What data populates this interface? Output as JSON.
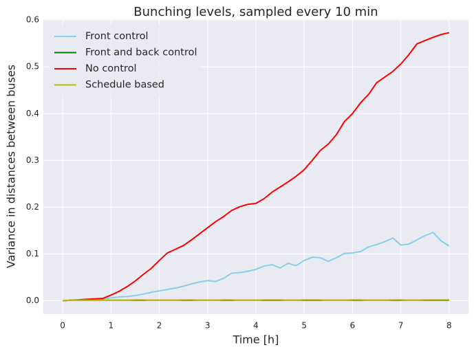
{
  "chart_data": {
    "type": "line",
    "title": "Bunching levels, sampled every 10 min",
    "x_label": "Time [h]",
    "y_label": "Variance in distances between buses",
    "x": [
      0,
      0.167,
      0.333,
      0.5,
      0.667,
      0.833,
      1,
      1.167,
      1.333,
      1.5,
      1.667,
      1.833,
      2,
      2.167,
      2.333,
      2.5,
      2.667,
      2.833,
      3,
      3.167,
      3.333,
      3.5,
      3.667,
      3.833,
      4,
      4.167,
      4.333,
      4.5,
      4.667,
      4.833,
      5,
      5.167,
      5.333,
      5.5,
      5.667,
      5.833,
      6,
      6.167,
      6.333,
      6.5,
      6.667,
      6.833,
      7,
      7.167,
      7.333,
      7.5,
      7.667,
      7.833,
      8
    ],
    "series": [
      {
        "name": "Front control",
        "color": "#87ceeb",
        "values": [
          0,
          0.001,
          0.001,
          0.002,
          0.003,
          0.004,
          0.006,
          0.008,
          0.009,
          0.011,
          0.014,
          0.018,
          0.021,
          0.024,
          0.027,
          0.031,
          0.036,
          0.04,
          0.043,
          0.041,
          0.048,
          0.059,
          0.06,
          0.063,
          0.067,
          0.074,
          0.077,
          0.07,
          0.08,
          0.075,
          0.086,
          0.093,
          0.092,
          0.084,
          0.092,
          0.101,
          0.102,
          0.105,
          0.115,
          0.12,
          0.126,
          0.134,
          0.119,
          0.121,
          0.13,
          0.139,
          0.146,
          0.128,
          0.117
        ]
      },
      {
        "name": "Front and back control",
        "color": "#008000",
        "values": [
          0,
          0.001,
          0.001,
          0.001,
          0.001,
          0.001,
          0.001,
          0.001,
          0.001,
          0.001,
          0.001,
          0.001,
          0.001,
          0.001,
          0.001,
          0.001,
          0.001,
          0.001,
          0.001,
          0.001,
          0.001,
          0.001,
          0.001,
          0.001,
          0.001,
          0.001,
          0.001,
          0.001,
          0.001,
          0.001,
          0.001,
          0.001,
          0.001,
          0.001,
          0.001,
          0.001,
          0.001,
          0.001,
          0.001,
          0.001,
          0.001,
          0.001,
          0.001,
          0.001,
          0.001,
          0.001,
          0.001,
          0.001,
          0.001
        ]
      },
      {
        "name": "No control",
        "color": "#ff0000",
        "values": [
          0,
          0.001,
          0.002,
          0.003,
          0.004,
          0.005,
          0.012,
          0.02,
          0.03,
          0.042,
          0.056,
          0.069,
          0.086,
          0.102,
          0.11,
          0.118,
          0.13,
          0.143,
          0.156,
          0.169,
          0.18,
          0.193,
          0.201,
          0.206,
          0.208,
          0.218,
          0.232,
          0.243,
          0.254,
          0.266,
          0.28,
          0.3,
          0.321,
          0.335,
          0.355,
          0.383,
          0.4,
          0.423,
          0.441,
          0.466,
          0.478,
          0.49,
          0.506,
          0.526,
          0.549,
          0.556,
          0.563,
          0.569,
          0.573
        ]
      },
      {
        "name": "Schedule based",
        "color": "#bfbf00",
        "values": [
          0,
          0.001,
          0.001,
          0.001,
          0.001,
          0.001,
          0.001,
          0.001,
          0.001,
          0.002,
          0.002,
          0.001,
          0.001,
          0.001,
          0.001,
          0.002,
          0.002,
          0.001,
          0.001,
          0.001,
          0.002,
          0.002,
          0.001,
          0.001,
          0.001,
          0.002,
          0.002,
          0.002,
          0.001,
          0.001,
          0.002,
          0.002,
          0.002,
          0.001,
          0.001,
          0.001,
          0.002,
          0.002,
          0.001,
          0.001,
          0.001,
          0.002,
          0.002,
          0.001,
          0.001,
          0.002,
          0.002,
          0.002,
          0.002
        ]
      }
    ],
    "xlim": [
      -0.4,
      8.4
    ],
    "ylim": [
      -0.0287,
      0.6017
    ],
    "xticks": [
      0,
      1,
      2,
      3,
      4,
      5,
      6,
      7,
      8
    ],
    "yticks": [
      {
        "value": 0,
        "label": "0.0"
      },
      0.1,
      0.2,
      0.3,
      0.4,
      0.5,
      0.6
    ],
    "grid": true,
    "legend": "upper-left"
  }
}
